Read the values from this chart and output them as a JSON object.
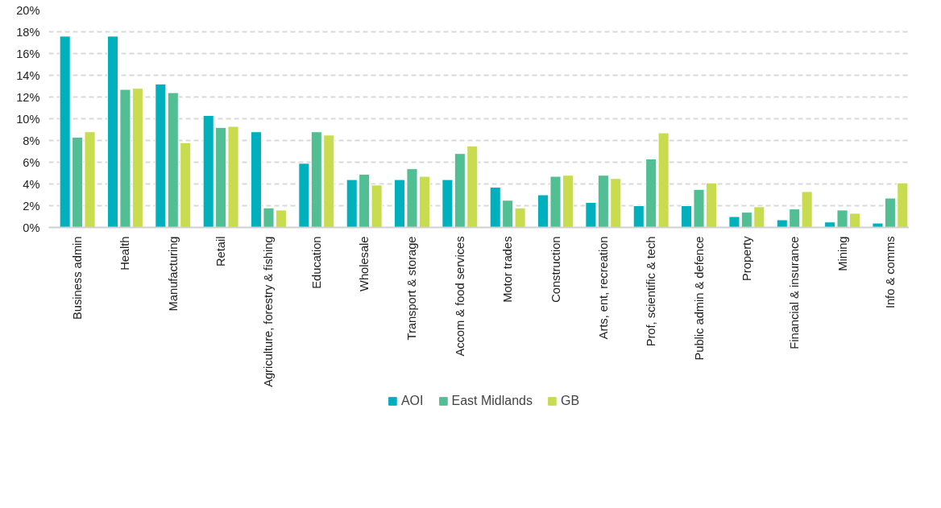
{
  "chart_data": {
    "type": "bar",
    "categories": [
      "Business admin",
      "Health",
      "Manufacturing",
      "Retail",
      "Agriculture, forestry & fishing",
      "Education",
      "Wholesale",
      "Transport & storage",
      "Accom & food services",
      "Motor trades",
      "Construction",
      "Arts, ent, recreation",
      "Prof, scientific & tech",
      "Public admin & defence",
      "Property",
      "Financial & insurance",
      "Mining",
      "Info & comms"
    ],
    "series": [
      {
        "name": "AOI",
        "color": "#00b0bc",
        "values": [
          17.6,
          17.6,
          13.2,
          10.3,
          8.8,
          5.9,
          4.4,
          4.4,
          4.4,
          3.7,
          3.0,
          2.3,
          2.0,
          2.0,
          1.0,
          0.7,
          0.5,
          0.4
        ]
      },
      {
        "name": "East Midlands",
        "color": "#52be94",
        "values": [
          8.3,
          12.7,
          12.4,
          9.2,
          1.8,
          8.8,
          4.9,
          5.4,
          6.8,
          2.5,
          4.7,
          4.8,
          6.3,
          3.5,
          1.4,
          1.7,
          1.6,
          2.7
        ]
      },
      {
        "name": "GB",
        "color": "#c9db4f",
        "values": [
          8.8,
          12.8,
          7.8,
          9.3,
          1.6,
          8.5,
          3.9,
          4.7,
          7.5,
          1.8,
          4.8,
          4.5,
          8.7,
          4.1,
          1.9,
          3.3,
          1.3,
          4.1
        ]
      }
    ],
    "ylim": [
      0,
      20
    ],
    "yticks": [
      {
        "value": 0,
        "label": "0%"
      },
      {
        "value": 2,
        "label": "2%"
      },
      {
        "value": 4,
        "label": "4%"
      },
      {
        "value": 6,
        "label": "6%"
      },
      {
        "value": 8,
        "label": "8%"
      },
      {
        "value": 10,
        "label": "10%"
      },
      {
        "value": 12,
        "label": "12%"
      },
      {
        "value": 14,
        "label": "14%"
      },
      {
        "value": 16,
        "label": "16%"
      },
      {
        "value": 18,
        "label": "18%"
      },
      {
        "value": 20,
        "label": "20%"
      }
    ],
    "grid": "y",
    "line_style": "dashed",
    "legend": "bottom"
  }
}
